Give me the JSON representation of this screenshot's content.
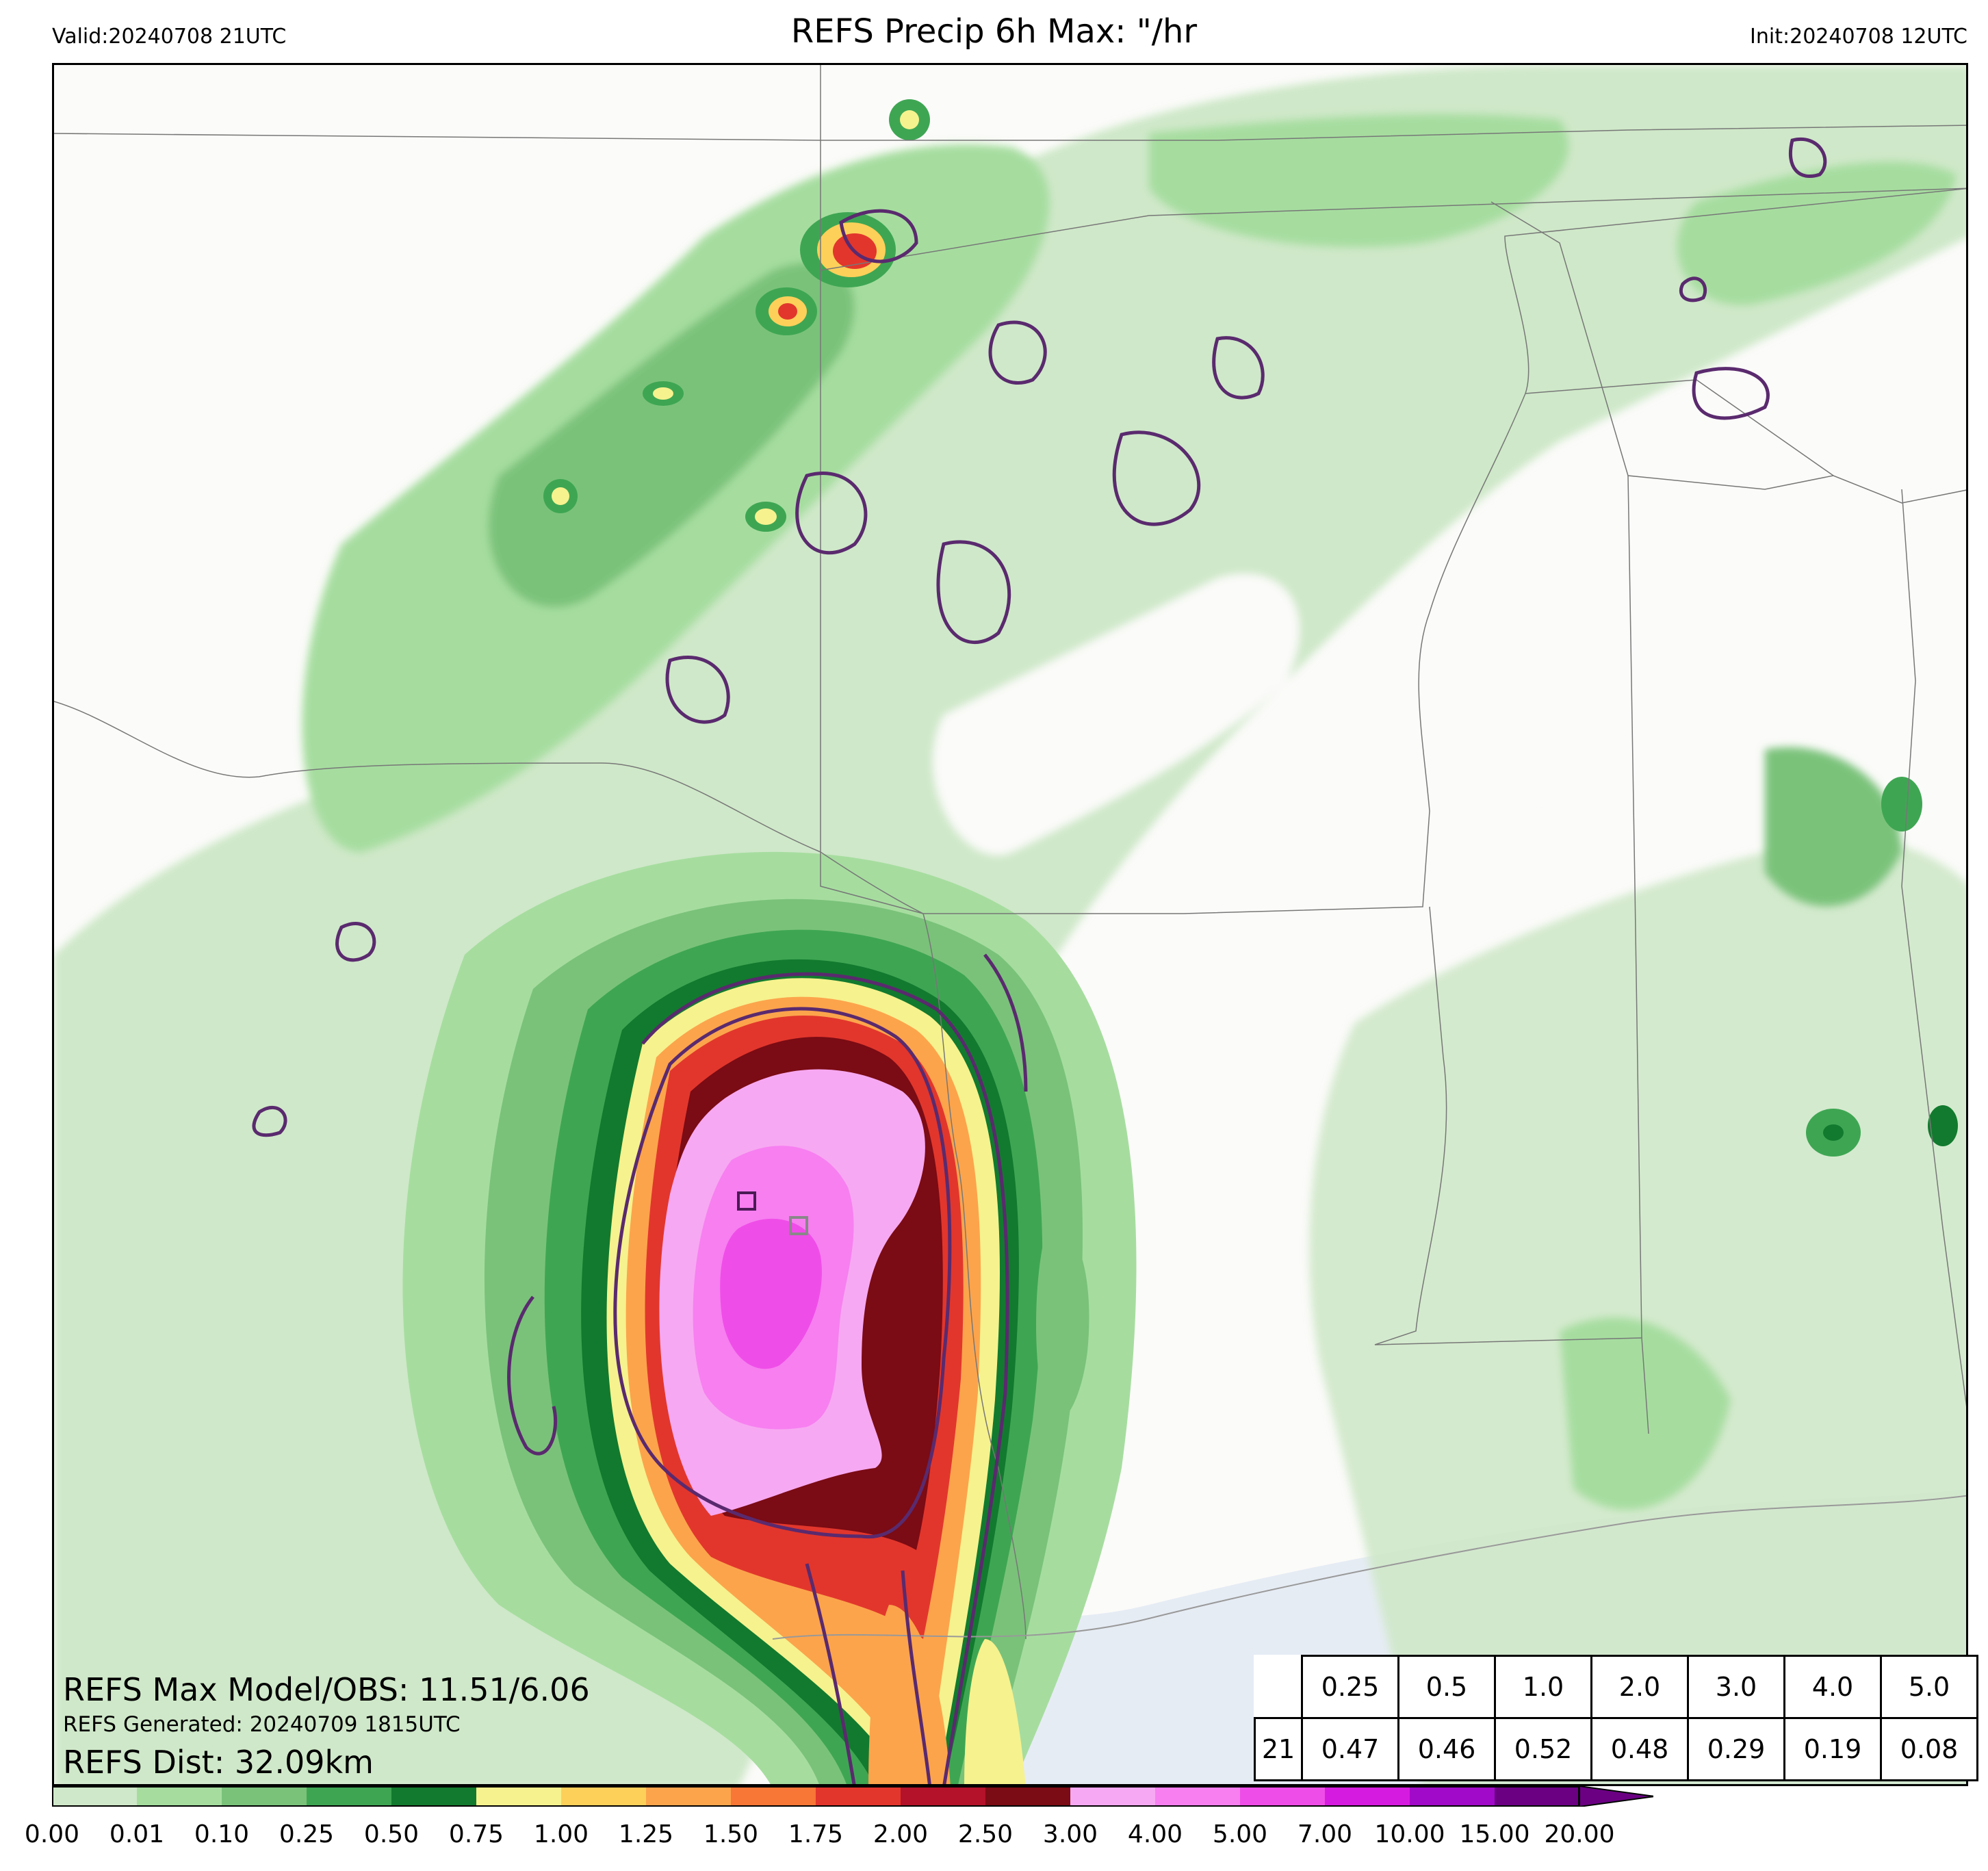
{
  "header": {
    "valid": "Valid:20240708 21UTC",
    "title": "REFS Precip 6h Max: \"/hr",
    "init": "Init:20240708 12UTC"
  },
  "stats": {
    "max_model_obs": "REFS Max Model/OBS: 11.51/6.06",
    "generated": "REFS Generated: 20240709 1815UTC",
    "dist": "REFS Dist: 32.09km"
  },
  "table": {
    "thresholds": [
      "0.25",
      "0.5",
      "1.0",
      "2.0",
      "3.0",
      "4.0",
      "5.0"
    ],
    "hour": "21",
    "values": [
      "0.47",
      "0.46",
      "0.52",
      "0.48",
      "0.29",
      "0.19",
      "0.08"
    ]
  },
  "colorbar": {
    "ticks": [
      "0.00",
      "0.01",
      "0.10",
      "0.25",
      "0.50",
      "0.75",
      "1.00",
      "1.25",
      "1.50",
      "1.75",
      "2.00",
      "2.50",
      "3.00",
      "4.00",
      "5.00",
      "7.00",
      "10.00",
      "15.00",
      "20.00"
    ],
    "colors": [
      "#ffffff",
      "#cfe8c9",
      "#a6dd9f",
      "#7ac27a",
      "#3ea653",
      "#127a2e",
      "#f6f28e",
      "#fdd05a",
      "#fca44c",
      "#f87636",
      "#e2362c",
      "#b3122a",
      "#7b0b14",
      "#f7a8f2",
      "#f77ff0",
      "#ef4de8",
      "#d61be0",
      "#a10ac8",
      "#6b0083"
    ]
  },
  "map_colors": {
    "light_green": "#cfe8c9",
    "green": "#a6dd9f",
    "mid_green": "#7ac27a",
    "dark_green": "#3ea653",
    "darkest_green": "#127a2e",
    "yellow": "#f6f28e",
    "orange": "#fca44c",
    "red": "#e2362c",
    "maroon": "#7b0b14",
    "pink": "#f7a8f2",
    "magenta": "#ef4de8",
    "obs_contour": "#5a2a6e",
    "water": "#e6ecf4"
  }
}
